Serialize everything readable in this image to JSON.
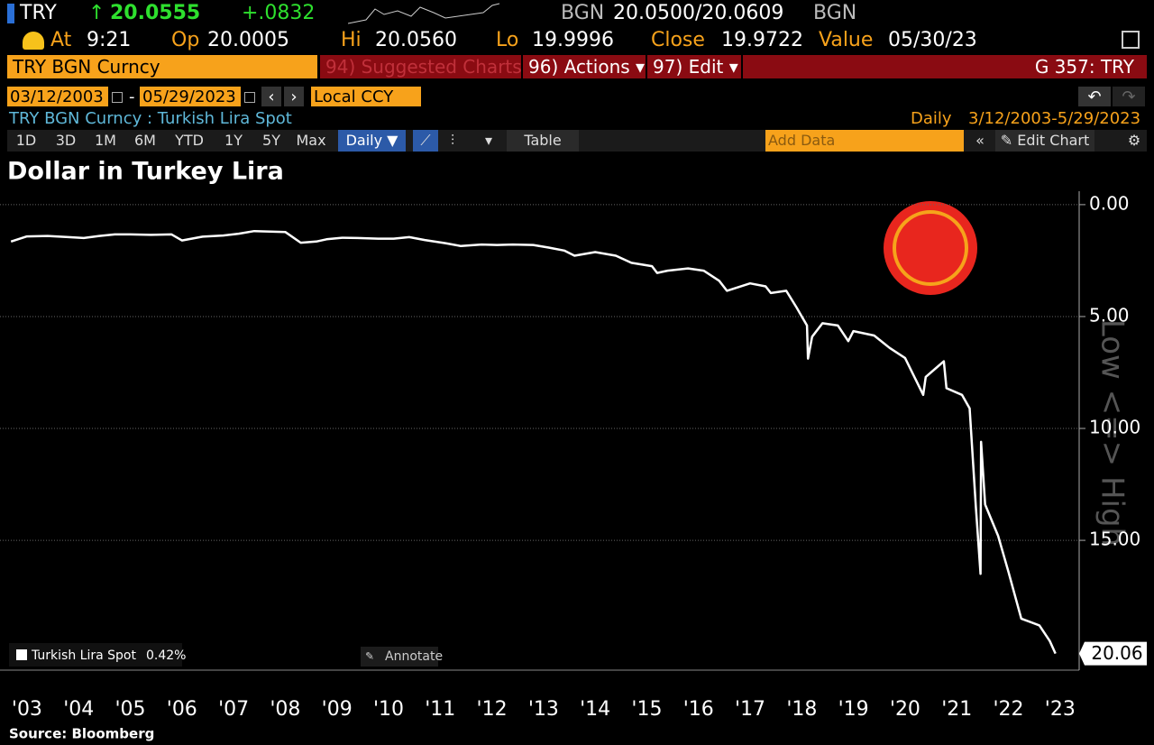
{
  "header": {
    "symbol": "TRY",
    "last": "20.0555",
    "change": "+.0832",
    "bid_currency": "BGN",
    "quote": "20.0500/20.0609",
    "ask_currency": "BGN"
  },
  "stats": [
    {
      "label": "At",
      "value": "9:21"
    },
    {
      "label": "Op",
      "value": "20.0005"
    },
    {
      "label": "Hi",
      "value": "20.0560"
    },
    {
      "label": "Lo",
      "value": "19.9996"
    },
    {
      "label": "Close",
      "value": "19.9722"
    },
    {
      "label": "Value",
      "value": "05/30/23"
    }
  ],
  "menu": {
    "security": "TRY BGN Curncy",
    "suggested": "94) Suggested Charts",
    "actions": "96) Actions ▾",
    "edit": "97) Edit ▾",
    "function": "G 357: TRY"
  },
  "range": {
    "start": "03/12/2003",
    "separator": "-",
    "end": "05/29/2023",
    "currency": "Local CCY"
  },
  "security_line": {
    "description": "TRY BGN Curncy : Turkish Lira Spot",
    "frequency": "Daily",
    "period": "3/12/2003-5/29/2023"
  },
  "toolbar": {
    "periods": [
      "1D",
      "3D",
      "1M",
      "6M",
      "YTD",
      "1Y",
      "5Y",
      "Max"
    ],
    "frequency": "Daily ▼",
    "table": "Table",
    "add_data": "Add Data",
    "edit_chart": "Edit Chart"
  },
  "annotate": "Annotate",
  "watermark": "Low <=> High",
  "chart_data": {
    "type": "line",
    "title": "Dollar in Turkey Lira",
    "source": "Source: Bloomberg",
    "x": [
      2003.19,
      2003.5,
      2003.9,
      2004.3,
      2004.6,
      2004.9,
      2005.2,
      2005.5,
      2005.9,
      2006.3,
      2006.5,
      2006.9,
      2007.3,
      2007.6,
      2007.9,
      2008.2,
      2008.5,
      2008.8,
      2009.1,
      2009.3,
      2009.6,
      2009.9,
      2010.3,
      2010.6,
      2010.9,
      2011.2,
      2011.6,
      2011.9,
      2012.3,
      2012.6,
      2012.9,
      2013.3,
      2013.6,
      2013.9,
      2014.1,
      2014.5,
      2014.9,
      2015.2,
      2015.6,
      2015.7,
      2015.9,
      2016.3,
      2016.6,
      2016.9,
      2017.05,
      2017.5,
      2017.8,
      2017.9,
      2018.2,
      2018.4,
      2018.6,
      2018.62,
      2018.7,
      2018.9,
      2019.2,
      2019.4,
      2019.5,
      2019.9,
      2020.2,
      2020.5,
      2020.85,
      2020.9,
      2021.1,
      2021.25,
      2021.3,
      2021.6,
      2021.75,
      2021.87,
      2021.96,
      2021.97,
      2022.05,
      2022.3,
      2022.5,
      2022.75,
      2023.1,
      2023.3,
      2023.41
    ],
    "series": [
      {
        "name": "Turkish Lira Spot",
        "change_label": "0.42%",
        "color": "#ffffff",
        "values": [
          1.65,
          1.42,
          1.4,
          1.45,
          1.49,
          1.4,
          1.33,
          1.33,
          1.35,
          1.33,
          1.6,
          1.43,
          1.38,
          1.3,
          1.18,
          1.2,
          1.22,
          1.7,
          1.65,
          1.55,
          1.48,
          1.49,
          1.52,
          1.52,
          1.45,
          1.58,
          1.72,
          1.85,
          1.78,
          1.8,
          1.78,
          1.8,
          1.92,
          2.05,
          2.28,
          2.12,
          2.28,
          2.6,
          2.75,
          3.05,
          2.95,
          2.85,
          2.95,
          3.4,
          3.85,
          3.52,
          3.65,
          3.95,
          3.85,
          4.6,
          5.4,
          6.88,
          5.9,
          5.3,
          5.4,
          6.1,
          5.65,
          5.85,
          6.4,
          6.85,
          8.5,
          7.7,
          7.3,
          7.0,
          8.2,
          8.5,
          9.1,
          13.5,
          16.5,
          10.6,
          13.4,
          14.8,
          16.4,
          18.5,
          18.8,
          19.5,
          20.06
        ]
      }
    ],
    "xlim": [
      2003.1,
      2023.8
    ],
    "xticks": [
      {
        "value": 2003.5,
        "label": "'03"
      },
      {
        "value": 2004.5,
        "label": "'04"
      },
      {
        "value": 2005.5,
        "label": "'05"
      },
      {
        "value": 2006.5,
        "label": "'06"
      },
      {
        "value": 2007.5,
        "label": "'07"
      },
      {
        "value": 2008.5,
        "label": "'08"
      },
      {
        "value": 2009.5,
        "label": "'09"
      },
      {
        "value": 2010.5,
        "label": "'10"
      },
      {
        "value": 2011.5,
        "label": "'11"
      },
      {
        "value": 2012.5,
        "label": "'12"
      },
      {
        "value": 2013.5,
        "label": "'13"
      },
      {
        "value": 2014.5,
        "label": "'14"
      },
      {
        "value": 2015.5,
        "label": "'15"
      },
      {
        "value": 2016.5,
        "label": "'16"
      },
      {
        "value": 2017.5,
        "label": "'17"
      },
      {
        "value": 2018.5,
        "label": "'18"
      },
      {
        "value": 2019.5,
        "label": "'19"
      },
      {
        "value": 2020.5,
        "label": "'20"
      },
      {
        "value": 2021.5,
        "label": "'21"
      },
      {
        "value": 2022.5,
        "label": "'22"
      },
      {
        "value": 2023.5,
        "label": "'23"
      }
    ],
    "ylim": [
      20.8,
      -0.6
    ],
    "yticks": [
      {
        "value": 0,
        "label": "0.00"
      },
      {
        "value": 5,
        "label": "5.00"
      },
      {
        "value": 10,
        "label": "10.00"
      },
      {
        "value": 15,
        "label": "15.00"
      }
    ],
    "grid": true
  }
}
